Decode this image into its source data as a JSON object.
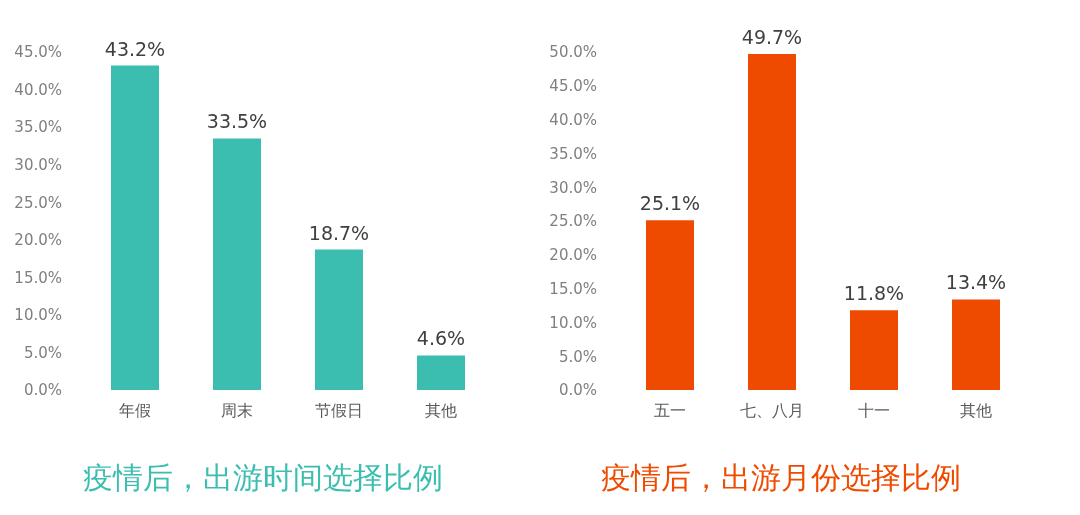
{
  "chart_data": [
    {
      "type": "bar",
      "title": "疫情后，出游时间选择比例",
      "categories": [
        "年假",
        "周末",
        "节假日",
        "其他"
      ],
      "values": [
        43.2,
        33.5,
        18.7,
        4.6
      ],
      "color": "#3bbdb0",
      "ylim": [
        0,
        45
      ],
      "yticks": [
        {
          "value": 0,
          "label": "0.0%"
        },
        {
          "value": 5,
          "label": "5.0%"
        },
        {
          "value": 10,
          "label": "10.0%"
        },
        {
          "value": 15,
          "label": "15.0%"
        },
        {
          "value": 20,
          "label": "20.0%"
        },
        {
          "value": 25,
          "label": "25.0%"
        },
        {
          "value": 30,
          "label": "30.0%"
        },
        {
          "value": 35,
          "label": "35.0%"
        },
        {
          "value": 40,
          "label": "40.0%"
        },
        {
          "value": 45,
          "label": "45.0%"
        }
      ],
      "value_labels": [
        "43.2%",
        "33.5%",
        "18.7%",
        "4.6%"
      ]
    },
    {
      "type": "bar",
      "title": "疫情后，出游月份选择比例",
      "categories": [
        "五一",
        "七、八月",
        "十一",
        "其他"
      ],
      "values": [
        25.1,
        49.7,
        11.8,
        13.4
      ],
      "color": "#ee4b00",
      "ylim": [
        0,
        50
      ],
      "yticks": [
        {
          "value": 0,
          "label": "0.0%"
        },
        {
          "value": 5,
          "label": "5.0%"
        },
        {
          "value": 10,
          "label": "10.0%"
        },
        {
          "value": 15,
          "label": "15.0%"
        },
        {
          "value": 20,
          "label": "20.0%"
        },
        {
          "value": 25,
          "label": "25.0%"
        },
        {
          "value": 30,
          "label": "30.0%"
        },
        {
          "value": 35,
          "label": "35.0%"
        },
        {
          "value": 40,
          "label": "40.0%"
        },
        {
          "value": 45,
          "label": "45.0%"
        },
        {
          "value": 50,
          "label": "50.0%"
        }
      ],
      "value_labels": [
        "25.1%",
        "49.7%",
        "11.8%",
        "13.4%"
      ]
    }
  ]
}
